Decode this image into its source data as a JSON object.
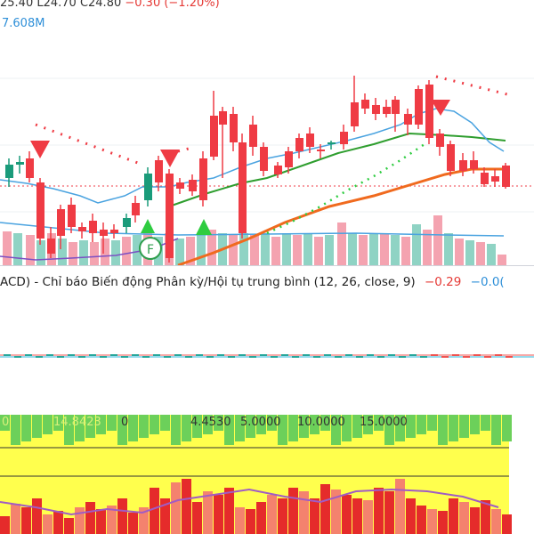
{
  "legend": {
    "ohlc_text": "25.40  L24.70  C24.80",
    "change": "−0.30 (−1.20%)",
    "volume": "7.608M"
  },
  "macd": {
    "label": "ACD)  - Chỉ báo Biến động Phân kỳ/Hội tụ trung bình (12, 26, close, 9)",
    "value1": "−0.29",
    "value2": "−0.0("
  },
  "bottom": {
    "labels": [
      "4.4530",
      "5.0000",
      "10.0000",
      "15.0000"
    ],
    "partial": [
      "0",
      "14.8423",
      "0"
    ]
  },
  "markers": {
    "f_label": "F"
  },
  "colors": {
    "up": "#1a9b7a",
    "down": "#ef3b44",
    "ma_green": "#2f9e2f",
    "ma_orange": "#f06a1e",
    "ma_blue": "#4aa3e0"
  }
}
